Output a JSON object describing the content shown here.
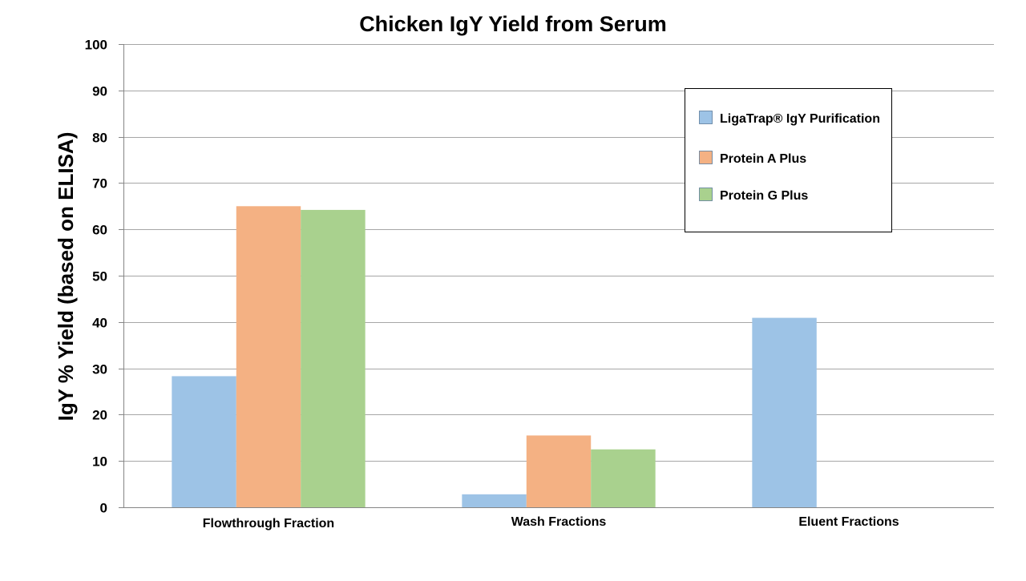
{
  "chart_data": {
    "type": "bar",
    "title": "Chicken IgY Yield from Serum",
    "xlabel": "",
    "ylabel": "IgY % Yield (based on ELISA)",
    "ylim": [
      0,
      100
    ],
    "yticks": [
      0,
      10,
      20,
      30,
      40,
      50,
      60,
      70,
      80,
      90,
      100
    ],
    "categories": [
      "Flowthrough Fraction",
      "Wash Fractions",
      "Eluent Fractions"
    ],
    "series": [
      {
        "name": "LigaTrap® IgY Purification",
        "color": "#9dc3e6",
        "values": [
          28.3,
          2.8,
          40.9
        ]
      },
      {
        "name": "Protein A Plus",
        "color": "#f4b183",
        "values": [
          65.0,
          15.5,
          0
        ]
      },
      {
        "name": "Protein G Plus",
        "color": "#a9d18e",
        "values": [
          64.2,
          12.5,
          0
        ]
      }
    ],
    "grid": true,
    "legend_position": "top-right"
  }
}
